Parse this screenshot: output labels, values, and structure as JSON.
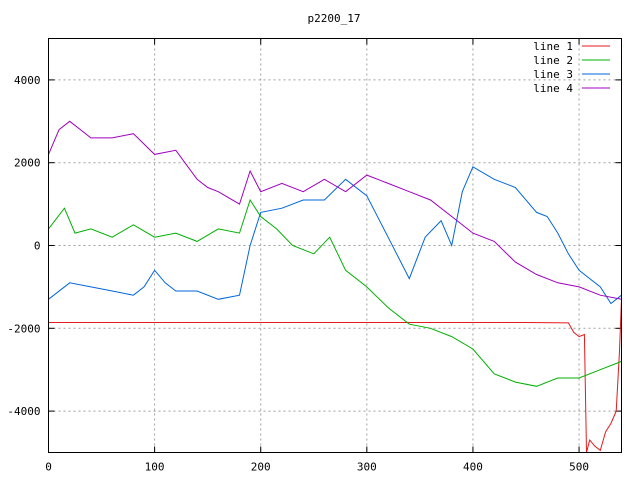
{
  "chart_data": {
    "type": "line",
    "title": "p2200_17",
    "xlabel": "",
    "ylabel": "",
    "xlim": [
      0,
      540
    ],
    "ylim": [
      -5000,
      5000
    ],
    "xticks": [
      0,
      100,
      200,
      300,
      400,
      500
    ],
    "yticks": [
      -4000,
      -2000,
      0,
      2000,
      4000
    ],
    "grid": true,
    "legend_position": "top-right",
    "series": [
      {
        "name": "line 1",
        "color": "#e41a1c",
        "x": [
          0,
          50,
          100,
          150,
          200,
          250,
          300,
          350,
          400,
          450,
          490,
          495,
          500,
          505,
          507,
          509,
          510,
          515,
          520,
          525,
          530,
          535,
          538,
          540
        ],
        "y": [
          -1860,
          -1860,
          -1860,
          -1860,
          -1860,
          -1860,
          -1860,
          -1860,
          -1860,
          -1860,
          -1870,
          -2100,
          -2200,
          -2150,
          -5000,
          -4800,
          -4700,
          -4850,
          -4950,
          -4500,
          -4300,
          -4000,
          -2600,
          -1300
        ]
      },
      {
        "name": "line 2",
        "color": "#00b000",
        "x": [
          0,
          15,
          25,
          40,
          60,
          80,
          100,
          120,
          140,
          160,
          180,
          190,
          200,
          215,
          230,
          250,
          265,
          280,
          300,
          320,
          340,
          360,
          380,
          400,
          420,
          440,
          460,
          480,
          500,
          520,
          540
        ],
        "y": [
          400,
          900,
          300,
          400,
          200,
          500,
          200,
          300,
          100,
          400,
          300,
          1100,
          700,
          400,
          0,
          -200,
          200,
          -600,
          -1000,
          -1500,
          -1900,
          -2000,
          -2200,
          -2500,
          -3100,
          -3300,
          -3400,
          -3200,
          -3200,
          -3000,
          -2800
        ]
      },
      {
        "name": "line 3",
        "color": "#0066dd",
        "x": [
          0,
          20,
          40,
          60,
          80,
          90,
          100,
          110,
          120,
          140,
          160,
          180,
          190,
          200,
          220,
          240,
          260,
          280,
          300,
          320,
          340,
          355,
          370,
          380,
          390,
          400,
          420,
          440,
          460,
          470,
          480,
          490,
          500,
          510,
          520,
          530,
          540
        ],
        "y": [
          -1300,
          -900,
          -1000,
          -1100,
          -1200,
          -1000,
          -600,
          -900,
          -1100,
          -1100,
          -1300,
          -1200,
          0,
          800,
          900,
          1100,
          1100,
          1600,
          1200,
          200,
          -800,
          200,
          600,
          0,
          1300,
          1900,
          1600,
          1400,
          800,
          700,
          300,
          -200,
          -600,
          -800,
          -1000,
          -1400,
          -1200
        ]
      },
      {
        "name": "line 4",
        "color": "#a000c0",
        "x": [
          0,
          10,
          20,
          40,
          60,
          80,
          100,
          120,
          140,
          150,
          160,
          180,
          190,
          200,
          220,
          240,
          260,
          280,
          300,
          320,
          340,
          360,
          380,
          400,
          420,
          440,
          460,
          480,
          500,
          520,
          540
        ],
        "y": [
          2200,
          2800,
          3000,
          2600,
          2600,
          2700,
          2200,
          2300,
          1600,
          1400,
          1300,
          1000,
          1800,
          1300,
          1500,
          1300,
          1600,
          1300,
          1700,
          1500,
          1300,
          1100,
          700,
          300,
          100,
          -400,
          -700,
          -900,
          -1000,
          -1200,
          -1300
        ]
      }
    ]
  }
}
